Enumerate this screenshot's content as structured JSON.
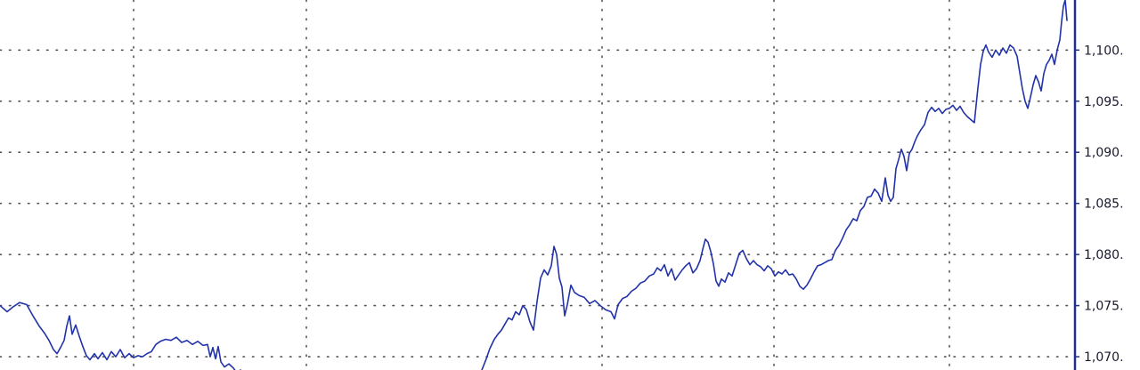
{
  "chart_data": {
    "type": "line",
    "title": "",
    "xlabel": "",
    "ylabel": "",
    "ylim": [
      1068.7,
      1104.9
    ],
    "grid": true,
    "y_tick_labels": [
      "1,100.",
      "1,095.",
      "1,090.",
      "1,085.",
      "1,080.",
      "1,075.",
      "1,070."
    ],
    "y_tick_values": [
      1100,
      1095,
      1090,
      1085,
      1080,
      1075,
      1070
    ],
    "colors": {
      "line": "#2233aa",
      "grid": "#555555",
      "axis": "#1f2f8f",
      "background": "#ffffff"
    },
    "series": [
      {
        "segments": [
          [
            [
              0,
              1075.0
            ],
            [
              8,
              1074.4
            ],
            [
              15,
              1074.9
            ],
            [
              22,
              1075.3
            ],
            [
              30,
              1075.1
            ],
            [
              37,
              1074.0
            ],
            [
              44,
              1073.0
            ],
            [
              50,
              1072.3
            ],
            [
              55,
              1071.6
            ],
            [
              60,
              1070.7
            ],
            [
              64,
              1070.3
            ],
            [
              68,
              1070.9
            ],
            [
              72,
              1071.6
            ],
            [
              75,
              1073.0
            ],
            [
              78,
              1074.0
            ],
            [
              81,
              1072.2
            ],
            [
              85,
              1073.1
            ],
            [
              89,
              1072.0
            ],
            [
              93,
              1071.0
            ],
            [
              97,
              1070.1
            ],
            [
              101,
              1069.7
            ],
            [
              106,
              1070.3
            ],
            [
              110,
              1069.8
            ],
            [
              115,
              1070.4
            ],
            [
              120,
              1069.7
            ],
            [
              125,
              1070.5
            ],
            [
              130,
              1070.0
            ],
            [
              135,
              1070.7
            ],
            [
              140,
              1069.9
            ],
            [
              145,
              1070.3
            ],
            [
              150,
              1069.9
            ],
            [
              155,
              1070.1
            ],
            [
              160,
              1070.0
            ],
            [
              165,
              1070.3
            ],
            [
              170,
              1070.5
            ],
            [
              175,
              1071.2
            ],
            [
              180,
              1071.5
            ],
            [
              186,
              1071.7
            ],
            [
              192,
              1071.6
            ],
            [
              198,
              1071.9
            ],
            [
              204,
              1071.4
            ],
            [
              210,
              1071.6
            ],
            [
              216,
              1071.2
            ],
            [
              222,
              1071.5
            ],
            [
              228,
              1071.1
            ],
            [
              233,
              1071.2
            ],
            [
              236,
              1070.0
            ],
            [
              239,
              1070.9
            ],
            [
              242,
              1069.8
            ],
            [
              245,
              1071.0
            ],
            [
              248,
              1069.5
            ],
            [
              252,
              1069.0
            ],
            [
              257,
              1069.3
            ],
            [
              262,
              1068.9
            ],
            [
              266,
              1068.4
            ],
            [
              270,
              1068.7
            ]
          ],
          [
            [
              541,
              1068.7
            ],
            [
              546,
              1069.8
            ],
            [
              550,
              1070.8
            ],
            [
              555,
              1071.7
            ],
            [
              559,
              1072.2
            ],
            [
              563,
              1072.6
            ],
            [
              567,
              1073.2
            ],
            [
              571,
              1073.8
            ],
            [
              575,
              1073.6
            ],
            [
              579,
              1074.4
            ],
            [
              583,
              1074.1
            ],
            [
              587,
              1075.0
            ],
            [
              591,
              1074.6
            ],
            [
              595,
              1073.4
            ],
            [
              599,
              1072.6
            ],
            [
              603,
              1075.4
            ],
            [
              607,
              1077.7
            ],
            [
              611,
              1078.5
            ],
            [
              615,
              1078.0
            ],
            [
              619,
              1078.9
            ],
            [
              622,
              1080.8
            ],
            [
              625,
              1080.0
            ],
            [
              628,
              1077.7
            ],
            [
              631,
              1076.8
            ],
            [
              634,
              1074.0
            ],
            [
              637,
              1075.1
            ],
            [
              641,
              1077.0
            ],
            [
              645,
              1076.3
            ],
            [
              650,
              1076.0
            ],
            [
              656,
              1075.8
            ],
            [
              662,
              1075.2
            ],
            [
              668,
              1075.5
            ],
            [
              674,
              1075.0
            ],
            [
              680,
              1074.6
            ],
            [
              686,
              1074.4
            ],
            [
              690,
              1073.7
            ],
            [
              694,
              1075.1
            ],
            [
              699,
              1075.7
            ],
            [
              704,
              1075.9
            ],
            [
              709,
              1076.4
            ],
            [
              714,
              1076.7
            ],
            [
              719,
              1077.2
            ],
            [
              724,
              1077.4
            ],
            [
              729,
              1077.9
            ],
            [
              734,
              1078.1
            ],
            [
              738,
              1078.7
            ],
            [
              742,
              1078.4
            ],
            [
              746,
              1079.0
            ],
            [
              750,
              1077.9
            ],
            [
              754,
              1078.6
            ],
            [
              758,
              1077.5
            ],
            [
              762,
              1078.0
            ],
            [
              766,
              1078.5
            ],
            [
              770,
              1078.9
            ],
            [
              774,
              1079.2
            ],
            [
              778,
              1078.2
            ],
            [
              782,
              1078.6
            ],
            [
              786,
              1079.4
            ],
            [
              789,
              1080.5
            ],
            [
              792,
              1081.5
            ],
            [
              795,
              1081.2
            ],
            [
              798,
              1080.3
            ],
            [
              801,
              1079.1
            ],
            [
              804,
              1077.4
            ],
            [
              807,
              1076.9
            ],
            [
              810,
              1077.6
            ],
            [
              814,
              1077.3
            ],
            [
              818,
              1078.2
            ],
            [
              822,
              1077.9
            ],
            [
              826,
              1079.0
            ],
            [
              830,
              1080.1
            ],
            [
              834,
              1080.4
            ],
            [
              838,
              1079.6
            ],
            [
              842,
              1079.0
            ],
            [
              846,
              1079.4
            ],
            [
              850,
              1079.0
            ],
            [
              854,
              1078.8
            ],
            [
              858,
              1078.4
            ],
            [
              862,
              1078.9
            ],
            [
              866,
              1078.6
            ],
            [
              870,
              1077.9
            ],
            [
              874,
              1078.3
            ],
            [
              878,
              1078.1
            ],
            [
              882,
              1078.5
            ],
            [
              886,
              1078.0
            ],
            [
              890,
              1078.1
            ],
            [
              894,
              1077.6
            ],
            [
              898,
              1076.9
            ],
            [
              902,
              1076.6
            ],
            [
              906,
              1077.0
            ],
            [
              910,
              1077.6
            ],
            [
              914,
              1078.3
            ],
            [
              918,
              1078.9
            ],
            [
              922,
              1079.0
            ],
            [
              926,
              1079.2
            ],
            [
              930,
              1079.4
            ],
            [
              934,
              1079.5
            ],
            [
              938,
              1080.4
            ],
            [
              942,
              1080.9
            ],
            [
              946,
              1081.6
            ],
            [
              950,
              1082.4
            ],
            [
              954,
              1082.9
            ],
            [
              958,
              1083.5
            ],
            [
              962,
              1083.3
            ],
            [
              966,
              1084.3
            ],
            [
              970,
              1084.7
            ],
            [
              974,
              1085.6
            ],
            [
              978,
              1085.7
            ],
            [
              982,
              1086.4
            ],
            [
              986,
              1086.0
            ],
            [
              990,
              1085.2
            ],
            [
              994,
              1087.5
            ],
            [
              997,
              1085.8
            ],
            [
              1000,
              1085.2
            ],
            [
              1003,
              1085.6
            ],
            [
              1006,
              1088.4
            ],
            [
              1009,
              1089.3
            ],
            [
              1012,
              1090.3
            ],
            [
              1015,
              1089.6
            ],
            [
              1018,
              1088.2
            ],
            [
              1021,
              1089.9
            ],
            [
              1024,
              1090.3
            ],
            [
              1027,
              1091.0
            ],
            [
              1030,
              1091.6
            ],
            [
              1034,
              1092.2
            ],
            [
              1038,
              1092.7
            ],
            [
              1042,
              1093.9
            ],
            [
              1046,
              1094.4
            ],
            [
              1050,
              1094.0
            ],
            [
              1054,
              1094.3
            ],
            [
              1058,
              1093.8
            ],
            [
              1062,
              1094.2
            ],
            [
              1066,
              1094.3
            ],
            [
              1070,
              1094.6
            ],
            [
              1074,
              1094.1
            ],
            [
              1078,
              1094.5
            ],
            [
              1082,
              1093.9
            ],
            [
              1086,
              1093.5
            ],
            [
              1090,
              1093.2
            ],
            [
              1094,
              1092.9
            ],
            [
              1098,
              1096.3
            ],
            [
              1101,
              1098.6
            ],
            [
              1104,
              1099.9
            ],
            [
              1107,
              1100.5
            ],
            [
              1110,
              1099.8
            ],
            [
              1114,
              1099.3
            ],
            [
              1118,
              1100.0
            ],
            [
              1122,
              1099.5
            ],
            [
              1126,
              1100.2
            ],
            [
              1130,
              1099.7
            ],
            [
              1134,
              1100.5
            ],
            [
              1138,
              1100.2
            ],
            [
              1142,
              1099.4
            ],
            [
              1145,
              1097.8
            ],
            [
              1148,
              1096.2
            ],
            [
              1151,
              1095.0
            ],
            [
              1154,
              1094.3
            ],
            [
              1157,
              1095.4
            ],
            [
              1160,
              1096.6
            ],
            [
              1163,
              1097.5
            ],
            [
              1166,
              1096.9
            ],
            [
              1169,
              1096.0
            ],
            [
              1172,
              1097.7
            ],
            [
              1175,
              1098.6
            ],
            [
              1178,
              1099.0
            ],
            [
              1181,
              1099.6
            ],
            [
              1184,
              1098.6
            ],
            [
              1187,
              1100.0
            ],
            [
              1190,
              1101.0
            ],
            [
              1192,
              1102.8
            ],
            [
              1194,
              1104.3
            ],
            [
              1196,
              1104.9
            ],
            [
              1198,
              1102.9
            ]
          ]
        ]
      }
    ]
  }
}
